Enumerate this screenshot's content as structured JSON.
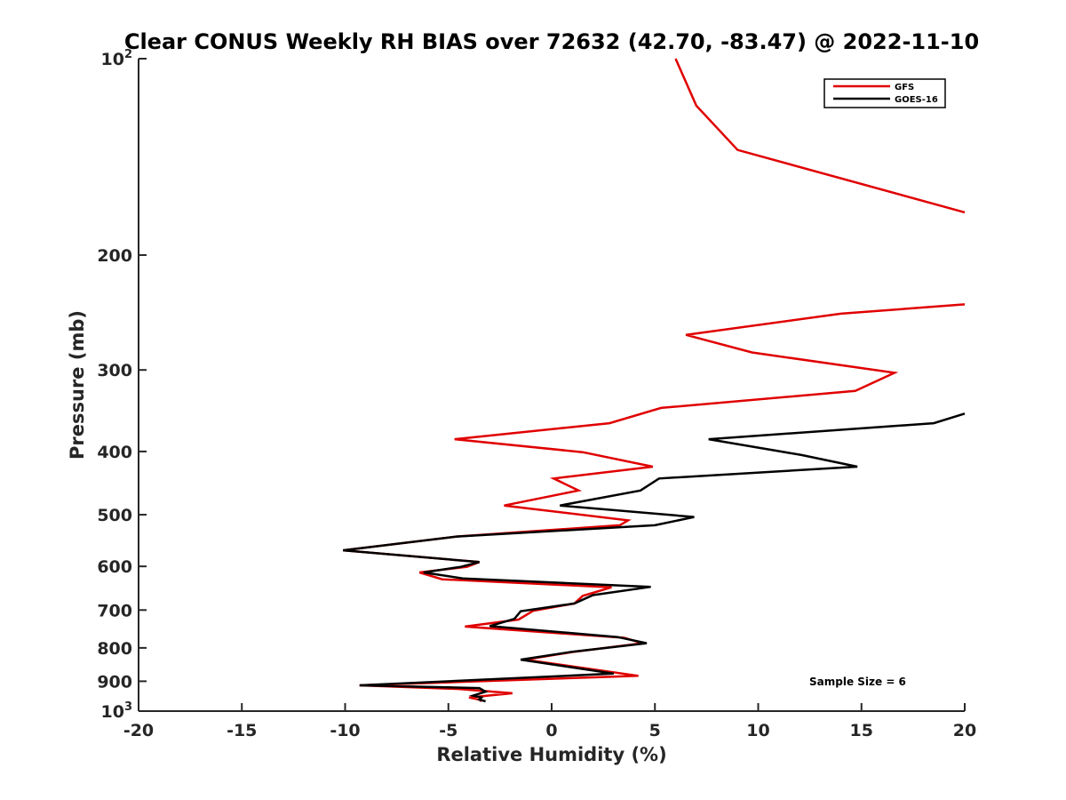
{
  "chart_data": {
    "type": "line",
    "title": "Clear CONUS Weekly RH BIAS over 72632 (42.70, -83.47) @ 2022-11-10",
    "xlabel": "Relative Humidity (%)",
    "ylabel": "Pressure (mb)",
    "xlim": [
      -20,
      20
    ],
    "ylim": [
      100,
      1000
    ],
    "y_scale": "log",
    "y_reversed": true,
    "grid": false,
    "legend_position": "top-right",
    "x_ticks": [
      "-20",
      "-15",
      "-10",
      "-5",
      "0",
      "5",
      "10",
      "15",
      "20"
    ],
    "y_ticks": [
      {
        "value": 100,
        "base": "10",
        "exp": "2"
      },
      {
        "value": 200,
        "label": "200"
      },
      {
        "value": 300,
        "label": "300"
      },
      {
        "value": 400,
        "label": "400"
      },
      {
        "value": 500,
        "label": "500"
      },
      {
        "value": 600,
        "label": "600"
      },
      {
        "value": 700,
        "label": "700"
      },
      {
        "value": 800,
        "label": "800"
      },
      {
        "value": 900,
        "label": "900"
      },
      {
        "value": 1000,
        "base": "10",
        "exp": "3"
      }
    ],
    "annotation": "Sample Size = 6",
    "series": [
      {
        "name": "GFS",
        "color": "#e00000",
        "segments": [
          [
            [
              6.0,
              100
            ],
            [
              7.0,
              118
            ],
            [
              9.0,
              138
            ],
            [
              20.0,
              172
            ]
          ],
          [
            [
              20.0,
              238
            ],
            [
              14.0,
              246
            ],
            [
              6.5,
              265
            ],
            [
              9.7,
              282
            ],
            [
              16.6,
              303
            ],
            [
              14.7,
              323
            ],
            [
              5.3,
              343
            ],
            [
              2.8,
              362
            ],
            [
              -4.7,
              383
            ],
            [
              1.5,
              401
            ],
            [
              4.9,
              422
            ],
            [
              0.1,
              440
            ],
            [
              1.3,
              459
            ],
            [
              -2.3,
              484
            ],
            [
              3.7,
              510
            ],
            [
              3.3,
              519
            ],
            [
              -4.6,
              540
            ],
            [
              -10.1,
              567
            ],
            [
              -3.5,
              591
            ],
            [
              -4.1,
              601
            ],
            [
              -6.4,
              613
            ],
            [
              -5.3,
              628
            ],
            [
              2.9,
              646
            ],
            [
              1.5,
              666
            ],
            [
              1.1,
              684
            ],
            [
              -0.9,
              702
            ],
            [
              -1.6,
              724
            ],
            [
              -4.2,
              742
            ],
            [
              3.5,
              772
            ],
            [
              4.4,
              787
            ],
            [
              1.1,
              811
            ],
            [
              -1.3,
              834
            ],
            [
              4.2,
              883
            ],
            [
              -9.3,
              913
            ],
            [
              -4.5,
              925
            ],
            [
              -1.9,
              939
            ],
            [
              -3.1,
              947
            ],
            [
              -4.0,
              953
            ],
            [
              -3.5,
              960
            ],
            [
              -3.4,
              966
            ]
          ]
        ]
      },
      {
        "name": "GOES-16",
        "color": "#000000",
        "segments": [
          [
            [
              20.0,
              350
            ],
            [
              18.5,
              362
            ],
            [
              7.6,
              383
            ],
            [
              12.1,
              405
            ],
            [
              14.8,
              422
            ],
            [
              5.2,
              440
            ],
            [
              4.3,
              459
            ],
            [
              0.4,
              484
            ],
            [
              6.9,
              504
            ],
            [
              5.0,
              519
            ],
            [
              -4.6,
              540
            ],
            [
              -10.1,
              567
            ],
            [
              -3.5,
              591
            ],
            [
              -4.4,
              601
            ],
            [
              -6.2,
              613
            ],
            [
              -4.3,
              626
            ],
            [
              4.8,
              645
            ],
            [
              2.0,
              664
            ],
            [
              1.1,
              684
            ],
            [
              -1.5,
              703
            ],
            [
              -1.8,
              722
            ],
            [
              -3.0,
              741
            ],
            [
              3.2,
              770
            ],
            [
              4.6,
              787
            ],
            [
              1.0,
              811
            ],
            [
              -1.5,
              834
            ],
            [
              3.0,
              876
            ],
            [
              -9.3,
              913
            ],
            [
              -3.5,
              922
            ],
            [
              -3.2,
              934
            ],
            [
              -3.8,
              947
            ],
            [
              -3.4,
              953
            ],
            [
              -3.5,
              960
            ],
            [
              -3.2,
              966
            ]
          ]
        ]
      }
    ]
  }
}
